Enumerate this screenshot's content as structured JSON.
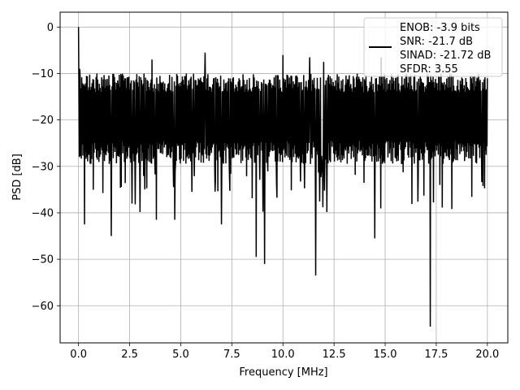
{
  "chart_data": {
    "type": "line",
    "title": "",
    "xlabel": "Frequency [MHz]",
    "ylabel": "PSD [dB]",
    "xlim": [
      -0.9,
      21.0
    ],
    "ylim": [
      -68,
      3.2
    ],
    "xticks": [
      0.0,
      2.5,
      5.0,
      7.5,
      10.0,
      12.5,
      15.0,
      17.5,
      20.0
    ],
    "xtick_labels": [
      "0.0",
      "2.5",
      "5.0",
      "7.5",
      "10.0",
      "12.5",
      "15.0",
      "17.5",
      "20.0"
    ],
    "yticks": [
      0,
      -10,
      -20,
      -30,
      -40,
      -50,
      -60
    ],
    "ytick_labels": [
      "0",
      "−10",
      "−20",
      "−30",
      "−40",
      "−50",
      "−60"
    ],
    "grid": true,
    "legend_position": "top-right",
    "legend_lines": [
      "ENOB: -3.9 bits",
      "SNR: -21.7 dB",
      "SINAD: -21.72 dB",
      "SFDR: 3.55"
    ],
    "series": [
      {
        "color": "#000000",
        "x_range": [
          0.0,
          20.0
        ],
        "num_points": 1025,
        "band_upper": -12,
        "band_lower": -27,
        "peak_db": 0.0,
        "notable_dips": [
          {
            "x": 0.3,
            "y": -42.5
          },
          {
            "x": 1.6,
            "y": -45.0
          },
          {
            "x": 3.8,
            "y": -41.5
          },
          {
            "x": 4.7,
            "y": -41.5
          },
          {
            "x": 7.0,
            "y": -42.5
          },
          {
            "x": 8.7,
            "y": -49.5
          },
          {
            "x": 9.1,
            "y": -51.0
          },
          {
            "x": 11.6,
            "y": -53.5
          },
          {
            "x": 14.5,
            "y": -45.5
          },
          {
            "x": 17.2,
            "y": -64.5
          }
        ],
        "notable_spikes": [
          {
            "x": 3.6,
            "y": -7.0
          },
          {
            "x": 6.2,
            "y": -5.5
          },
          {
            "x": 10.0,
            "y": -6.0
          },
          {
            "x": 11.3,
            "y": -6.5
          },
          {
            "x": 12.0,
            "y": -7.5
          },
          {
            "x": 14.8,
            "y": -6.5
          }
        ]
      }
    ]
  }
}
